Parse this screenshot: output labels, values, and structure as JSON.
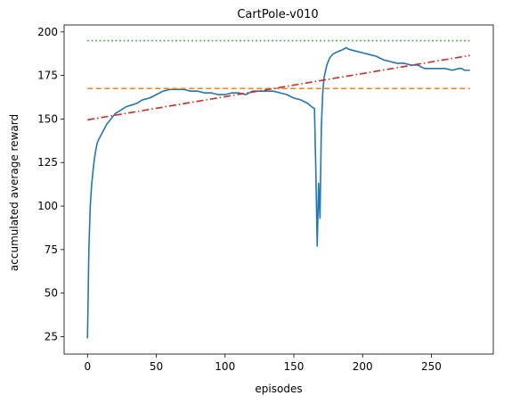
{
  "chart_data": {
    "type": "line",
    "title": "CartPole-v010",
    "xlabel": "episodes",
    "ylabel": "accumulated average reward",
    "xlim": [
      -17,
      295
    ],
    "ylim": [
      15,
      204
    ],
    "xticks": [
      0,
      50,
      100,
      150,
      200,
      250
    ],
    "yticks": [
      25,
      50,
      75,
      100,
      125,
      150,
      175,
      200
    ],
    "grid": false,
    "legend": "none",
    "series": [
      {
        "style": "solid",
        "color": "#1f77b4",
        "x": [
          0,
          1,
          2,
          3,
          4,
          5,
          6,
          7,
          8,
          10,
          12,
          14,
          16,
          18,
          20,
          24,
          28,
          32,
          36,
          40,
          45,
          50,
          55,
          60,
          65,
          70,
          75,
          80,
          85,
          90,
          95,
          100,
          105,
          110,
          115,
          120,
          125,
          130,
          135,
          140,
          145,
          150,
          155,
          160,
          163,
          165,
          166,
          167,
          168,
          169,
          170,
          171,
          172,
          174,
          176,
          178,
          180,
          183,
          186,
          188,
          190,
          195,
          200,
          205,
          210,
          215,
          220,
          225,
          230,
          235,
          240,
          245,
          250,
          255,
          260,
          265,
          270,
          272,
          274,
          276,
          278
        ],
        "y": [
          24,
          75,
          100,
          112,
          120,
          127,
          132,
          136,
          138,
          141,
          144,
          147,
          149,
          151,
          153,
          155,
          157,
          158,
          159,
          161,
          162,
          164,
          166,
          167,
          167,
          167,
          166,
          166,
          165,
          165,
          164,
          164,
          165,
          165,
          164,
          166,
          166,
          166,
          166,
          165,
          164,
          162,
          161,
          159,
          157,
          156,
          120,
          77,
          113,
          93,
          145,
          165,
          174,
          181,
          185,
          187,
          188,
          189,
          190,
          191,
          190,
          189,
          188,
          187,
          186,
          184,
          183,
          182,
          182,
          181,
          181,
          179,
          179,
          179,
          179,
          178,
          179,
          179,
          178,
          178,
          178
        ]
      },
      {
        "style": "dashed",
        "color": "#ff7f0e",
        "x": [
          0,
          278
        ],
        "y": [
          167.5,
          167.5
        ]
      },
      {
        "style": "dotted",
        "color": "#2ca02c",
        "x": [
          0,
          278
        ],
        "y": [
          195,
          195
        ]
      },
      {
        "style": "dashdot",
        "color": "#d62728",
        "x": [
          0,
          278
        ],
        "y": [
          149.5,
          186.5
        ]
      }
    ]
  }
}
